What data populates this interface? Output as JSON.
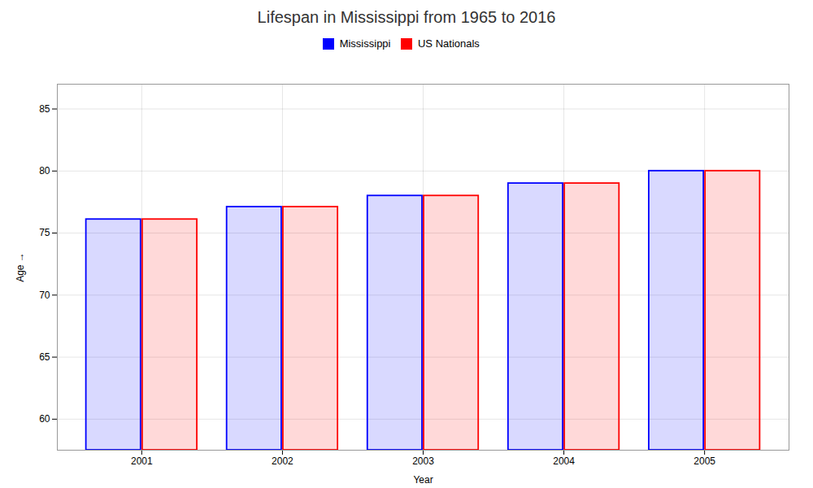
{
  "chart_data": {
    "type": "bar",
    "title": "Lifespan in Mississippi from 1965 to 2016",
    "xlabel": "Year",
    "ylabel": "Age",
    "categories": [
      "2001",
      "2002",
      "2003",
      "2004",
      "2005"
    ],
    "series": [
      {
        "name": "Mississippi",
        "color": "#0000ff",
        "values": [
          76.1,
          77.1,
          78.0,
          79.0,
          80.0
        ]
      },
      {
        "name": "US Nationals",
        "color": "#ff0000",
        "values": [
          76.1,
          77.1,
          78.0,
          79.0,
          80.0
        ]
      }
    ],
    "ylim": [
      57.5,
      87
    ],
    "yticks": [
      60,
      65,
      70,
      75,
      80,
      85
    ],
    "grid": true,
    "legend": "top"
  }
}
